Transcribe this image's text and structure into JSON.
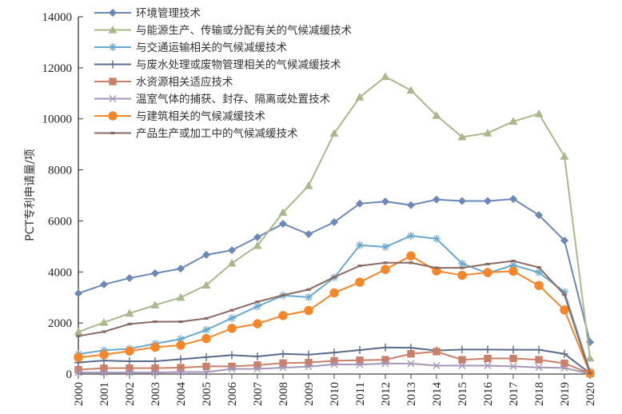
{
  "chart_data": {
    "type": "line",
    "title": "",
    "xlabel": "",
    "ylabel": "PCT专利申请量/项",
    "ylim": [
      0,
      14000
    ],
    "yticks": [
      0,
      2000,
      4000,
      6000,
      8000,
      10000,
      12000,
      14000
    ],
    "ytick_labels": [
      "0",
      "2000",
      "4000",
      "6000",
      "8000",
      "10000",
      "12000",
      "14000"
    ],
    "x": [
      "2000",
      "2001",
      "2002",
      "2003",
      "2004",
      "2005",
      "2006",
      "2007",
      "2008",
      "2009",
      "2010",
      "2011",
      "2012",
      "2013",
      "2014",
      "2015",
      "2016",
      "2017",
      "2018",
      "2019",
      "2020"
    ],
    "grid": false,
    "legend_position": "top-left",
    "series": [
      {
        "name": "环境管理技术",
        "color": "#6b88b8",
        "marker": "diamond",
        "values": [
          3160,
          3510,
          3760,
          3950,
          4130,
          4670,
          4850,
          5360,
          5890,
          5480,
          5950,
          6680,
          6760,
          6620,
          6840,
          6780,
          6780,
          6860,
          6230,
          5230,
          1250
        ]
      },
      {
        "name": "与能源生产、传输或分配有关的气候减缓技术",
        "color": "#a9b98c",
        "marker": "triangle",
        "values": [
          1650,
          2020,
          2380,
          2700,
          3000,
          3480,
          4340,
          5030,
          6330,
          7380,
          9430,
          10850,
          11650,
          11120,
          10130,
          9290,
          9440,
          9900,
          10200,
          8530,
          620
        ]
      },
      {
        "name": "与交通运输相关的气候减缓技术",
        "color": "#6aa8cf",
        "marker": "asterisk",
        "values": [
          780,
          930,
          990,
          1190,
          1370,
          1730,
          2190,
          2650,
          3080,
          3010,
          3780,
          5050,
          4980,
          5420,
          5300,
          4330,
          3950,
          4270,
          3980,
          3220,
          100
        ]
      },
      {
        "name": "与废水处理或废物管理相关的气候减缓技术",
        "color": "#5a6b8c",
        "marker": "plus",
        "values": [
          450,
          530,
          500,
          500,
          580,
          660,
          740,
          690,
          790,
          760,
          840,
          940,
          1040,
          1030,
          920,
          960,
          960,
          950,
          950,
          790,
          30
        ]
      },
      {
        "name": "水资源相关适应技术",
        "color": "#c9806a",
        "marker": "square",
        "values": [
          170,
          230,
          230,
          230,
          250,
          300,
          300,
          350,
          430,
          450,
          520,
          540,
          560,
          790,
          880,
          560,
          610,
          610,
          560,
          420,
          20
        ]
      },
      {
        "name": "温室气体的捕获、封存、隔离或处置技术",
        "color": "#a596b8",
        "marker": "x",
        "values": [
          60,
          60,
          60,
          60,
          80,
          80,
          200,
          200,
          250,
          290,
          380,
          370,
          410,
          410,
          330,
          330,
          330,
          300,
          260,
          240,
          10
        ]
      },
      {
        "name": "与建筑相关的气候减缓技术",
        "color": "#f5862a",
        "marker": "circle",
        "values": [
          650,
          760,
          900,
          1050,
          1130,
          1390,
          1790,
          1970,
          2290,
          2490,
          3180,
          3600,
          4100,
          4630,
          4040,
          3870,
          3980,
          4030,
          3470,
          2510,
          30
        ]
      },
      {
        "name": "产品生产或加工中的气候减缓技术",
        "color": "#8a6a62",
        "marker": "dash",
        "values": [
          1490,
          1660,
          1960,
          2050,
          2050,
          2180,
          2500,
          2830,
          3090,
          3310,
          3800,
          4240,
          4360,
          4360,
          4160,
          4160,
          4310,
          4430,
          4180,
          3110,
          30
        ]
      }
    ]
  }
}
